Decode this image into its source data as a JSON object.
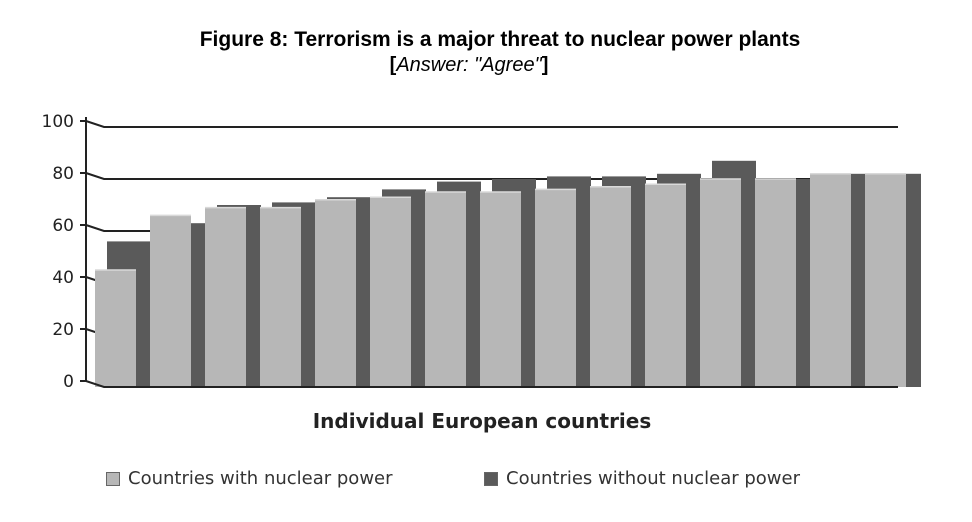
{
  "title": "Figure 8: Terrorism is a major threat to nuclear power plants",
  "subtitle": {
    "open": "[",
    "text": "Answer: \"Agree\"",
    "close": "]"
  },
  "chart_data": {
    "type": "bar",
    "title": "Figure 8: Terrorism is a major threat to nuclear power plants",
    "subtitle": "[Answer: \"Agree\"]",
    "xlabel": "Individual European countries",
    "ylabel": "",
    "ylim": [
      0,
      100
    ],
    "yticks": [
      "0",
      "20",
      "40",
      "60",
      "80",
      "100"
    ],
    "grid": true,
    "legend_position": "bottom",
    "series": [
      {
        "name": "Countries with nuclear power",
        "color": "#b7b7b7",
        "values": [
          45,
          66,
          69,
          69,
          72,
          73,
          75,
          75,
          76,
          77,
          78,
          80,
          80,
          82,
          82
        ]
      },
      {
        "name": "Countries without nuclear power",
        "color": "#5a5a5a",
        "values": [
          56,
          63,
          70,
          71,
          73,
          76,
          79,
          80,
          81,
          81,
          82,
          87,
          80,
          82,
          82
        ]
      }
    ]
  },
  "legend": {
    "with": "Countries with nuclear power",
    "without": "Countries without nuclear power"
  }
}
